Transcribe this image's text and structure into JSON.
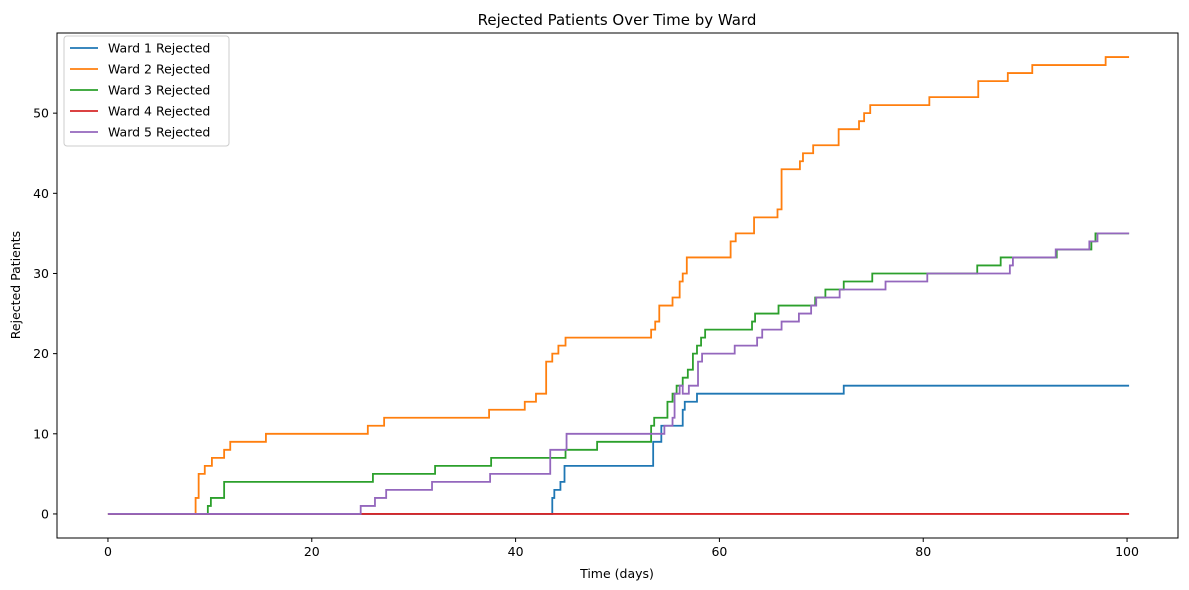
{
  "chart_data": {
    "type": "line",
    "step": true,
    "title": "Rejected Patients Over Time by Ward",
    "xlabel": "Time (days)",
    "ylabel": "Rejected Patients",
    "xlim": [
      -5,
      105
    ],
    "ylim": [
      -3,
      60
    ],
    "xticks": [
      0,
      20,
      40,
      60,
      80,
      100
    ],
    "yticks": [
      0,
      10,
      20,
      30,
      40,
      50
    ],
    "grid": false,
    "legend_position": "top-left",
    "series": [
      {
        "name": "Ward 1 Rejected",
        "color": "#1f77b4",
        "points": [
          [
            0,
            0
          ],
          [
            43.6,
            0
          ],
          [
            43.6,
            2
          ],
          [
            43.8,
            2
          ],
          [
            43.8,
            3
          ],
          [
            44.4,
            3
          ],
          [
            44.4,
            4
          ],
          [
            44.8,
            4
          ],
          [
            44.8,
            6
          ],
          [
            53.5,
            6
          ],
          [
            53.5,
            9
          ],
          [
            54.3,
            9
          ],
          [
            54.3,
            11
          ],
          [
            56.4,
            11
          ],
          [
            56.4,
            13
          ],
          [
            56.6,
            13
          ],
          [
            56.6,
            14
          ],
          [
            57.8,
            14
          ],
          [
            57.8,
            15
          ],
          [
            72.2,
            15
          ],
          [
            72.2,
            16
          ],
          [
            100.2,
            16
          ]
        ]
      },
      {
        "name": "Ward 2 Rejected",
        "color": "#ff7f0e",
        "points": [
          [
            0,
            0
          ],
          [
            8.6,
            0
          ],
          [
            8.6,
            2
          ],
          [
            8.9,
            2
          ],
          [
            8.9,
            5
          ],
          [
            9.5,
            5
          ],
          [
            9.5,
            6
          ],
          [
            10.2,
            6
          ],
          [
            10.2,
            7
          ],
          [
            11.4,
            7
          ],
          [
            11.4,
            8
          ],
          [
            12.0,
            8
          ],
          [
            12.0,
            9
          ],
          [
            15.5,
            9
          ],
          [
            15.5,
            10
          ],
          [
            25.5,
            10
          ],
          [
            25.5,
            11
          ],
          [
            27.1,
            11
          ],
          [
            27.1,
            12
          ],
          [
            37.4,
            12
          ],
          [
            37.4,
            13
          ],
          [
            40.9,
            13
          ],
          [
            40.9,
            14
          ],
          [
            42.0,
            14
          ],
          [
            42.0,
            15
          ],
          [
            43.0,
            15
          ],
          [
            43.0,
            19
          ],
          [
            43.6,
            19
          ],
          [
            43.6,
            20
          ],
          [
            44.2,
            20
          ],
          [
            44.2,
            21
          ],
          [
            44.9,
            21
          ],
          [
            44.9,
            22
          ],
          [
            53.3,
            22
          ],
          [
            53.3,
            23
          ],
          [
            53.7,
            23
          ],
          [
            53.7,
            24
          ],
          [
            54.1,
            24
          ],
          [
            54.1,
            26
          ],
          [
            55.4,
            26
          ],
          [
            55.4,
            27
          ],
          [
            56.1,
            27
          ],
          [
            56.1,
            29
          ],
          [
            56.4,
            29
          ],
          [
            56.4,
            30
          ],
          [
            56.8,
            30
          ],
          [
            56.8,
            32
          ],
          [
            61.1,
            32
          ],
          [
            61.1,
            34
          ],
          [
            61.6,
            34
          ],
          [
            61.6,
            35
          ],
          [
            63.4,
            35
          ],
          [
            63.4,
            37
          ],
          [
            65.7,
            37
          ],
          [
            65.7,
            38
          ],
          [
            66.1,
            38
          ],
          [
            66.1,
            43
          ],
          [
            67.9,
            43
          ],
          [
            67.9,
            44
          ],
          [
            68.2,
            44
          ],
          [
            68.2,
            45
          ],
          [
            69.2,
            45
          ],
          [
            69.2,
            46
          ],
          [
            71.7,
            46
          ],
          [
            71.7,
            48
          ],
          [
            73.7,
            48
          ],
          [
            73.7,
            49
          ],
          [
            74.2,
            49
          ],
          [
            74.2,
            50
          ],
          [
            74.8,
            50
          ],
          [
            74.8,
            51
          ],
          [
            80.6,
            51
          ],
          [
            80.6,
            52
          ],
          [
            85.4,
            52
          ],
          [
            85.4,
            54
          ],
          [
            88.3,
            54
          ],
          [
            88.3,
            55
          ],
          [
            90.7,
            55
          ],
          [
            90.7,
            56
          ],
          [
            97.9,
            56
          ],
          [
            97.9,
            57
          ],
          [
            100.2,
            57
          ]
        ]
      },
      {
        "name": "Ward 3 Rejected",
        "color": "#2ca02c",
        "points": [
          [
            0,
            0
          ],
          [
            9.8,
            0
          ],
          [
            9.8,
            1
          ],
          [
            10.1,
            1
          ],
          [
            10.1,
            2
          ],
          [
            11.4,
            2
          ],
          [
            11.4,
            4
          ],
          [
            26.0,
            4
          ],
          [
            26.0,
            5
          ],
          [
            32.1,
            5
          ],
          [
            32.1,
            6
          ],
          [
            37.6,
            6
          ],
          [
            37.6,
            7
          ],
          [
            44.9,
            7
          ],
          [
            44.9,
            8
          ],
          [
            48.0,
            8
          ],
          [
            48.0,
            9
          ],
          [
            53.3,
            9
          ],
          [
            53.3,
            11
          ],
          [
            53.6,
            11
          ],
          [
            53.6,
            12
          ],
          [
            54.9,
            12
          ],
          [
            54.9,
            14
          ],
          [
            55.4,
            14
          ],
          [
            55.4,
            15
          ],
          [
            55.8,
            15
          ],
          [
            55.8,
            16
          ],
          [
            56.4,
            16
          ],
          [
            56.4,
            17
          ],
          [
            56.9,
            17
          ],
          [
            56.9,
            18
          ],
          [
            57.4,
            18
          ],
          [
            57.4,
            20
          ],
          [
            57.8,
            20
          ],
          [
            57.8,
            21
          ],
          [
            58.2,
            21
          ],
          [
            58.2,
            22
          ],
          [
            58.6,
            22
          ],
          [
            58.6,
            23
          ],
          [
            63.2,
            23
          ],
          [
            63.2,
            24
          ],
          [
            63.5,
            24
          ],
          [
            63.5,
            25
          ],
          [
            65.8,
            25
          ],
          [
            65.8,
            26
          ],
          [
            69.4,
            26
          ],
          [
            69.4,
            27
          ],
          [
            70.4,
            27
          ],
          [
            70.4,
            28
          ],
          [
            72.2,
            28
          ],
          [
            72.2,
            29
          ],
          [
            75.0,
            29
          ],
          [
            75.0,
            30
          ],
          [
            85.3,
            30
          ],
          [
            85.3,
            31
          ],
          [
            87.6,
            31
          ],
          [
            87.6,
            32
          ],
          [
            93.1,
            32
          ],
          [
            93.1,
            33
          ],
          [
            96.5,
            33
          ],
          [
            96.5,
            34
          ],
          [
            96.9,
            34
          ],
          [
            96.9,
            35
          ],
          [
            100.2,
            35
          ]
        ]
      },
      {
        "name": "Ward 4 Rejected",
        "color": "#d62728",
        "points": [
          [
            0,
            0
          ],
          [
            100.2,
            0
          ]
        ]
      },
      {
        "name": "Ward 5 Rejected",
        "color": "#9467bd",
        "points": [
          [
            0,
            0
          ],
          [
            24.8,
            0
          ],
          [
            24.8,
            1
          ],
          [
            26.2,
            1
          ],
          [
            26.2,
            2
          ],
          [
            27.3,
            2
          ],
          [
            27.3,
            3
          ],
          [
            31.8,
            3
          ],
          [
            31.8,
            4
          ],
          [
            37.5,
            4
          ],
          [
            37.5,
            5
          ],
          [
            43.4,
            5
          ],
          [
            43.4,
            8
          ],
          [
            45.0,
            8
          ],
          [
            45.0,
            10
          ],
          [
            54.6,
            10
          ],
          [
            54.6,
            11
          ],
          [
            55.4,
            11
          ],
          [
            55.4,
            12
          ],
          [
            55.6,
            12
          ],
          [
            55.6,
            15
          ],
          [
            56.1,
            15
          ],
          [
            56.1,
            16
          ],
          [
            56.4,
            16
          ],
          [
            56.4,
            15
          ],
          [
            57.0,
            15
          ],
          [
            57.0,
            16
          ],
          [
            57.9,
            16
          ],
          [
            57.9,
            19
          ],
          [
            58.3,
            19
          ],
          [
            58.3,
            20
          ],
          [
            61.5,
            20
          ],
          [
            61.5,
            21
          ],
          [
            63.7,
            21
          ],
          [
            63.7,
            22
          ],
          [
            64.2,
            22
          ],
          [
            64.2,
            23
          ],
          [
            66.1,
            23
          ],
          [
            66.1,
            24
          ],
          [
            67.8,
            24
          ],
          [
            67.8,
            25
          ],
          [
            69.0,
            25
          ],
          [
            69.0,
            26
          ],
          [
            69.5,
            26
          ],
          [
            69.5,
            27
          ],
          [
            71.8,
            27
          ],
          [
            71.8,
            28
          ],
          [
            76.3,
            28
          ],
          [
            76.3,
            29
          ],
          [
            80.4,
            29
          ],
          [
            80.4,
            30
          ],
          [
            88.5,
            30
          ],
          [
            88.5,
            31
          ],
          [
            88.8,
            31
          ],
          [
            88.8,
            32
          ],
          [
            93.0,
            32
          ],
          [
            93.0,
            33
          ],
          [
            96.3,
            33
          ],
          [
            96.3,
            34
          ],
          [
            97.1,
            34
          ],
          [
            97.1,
            35
          ],
          [
            100.2,
            35
          ]
        ]
      }
    ]
  }
}
